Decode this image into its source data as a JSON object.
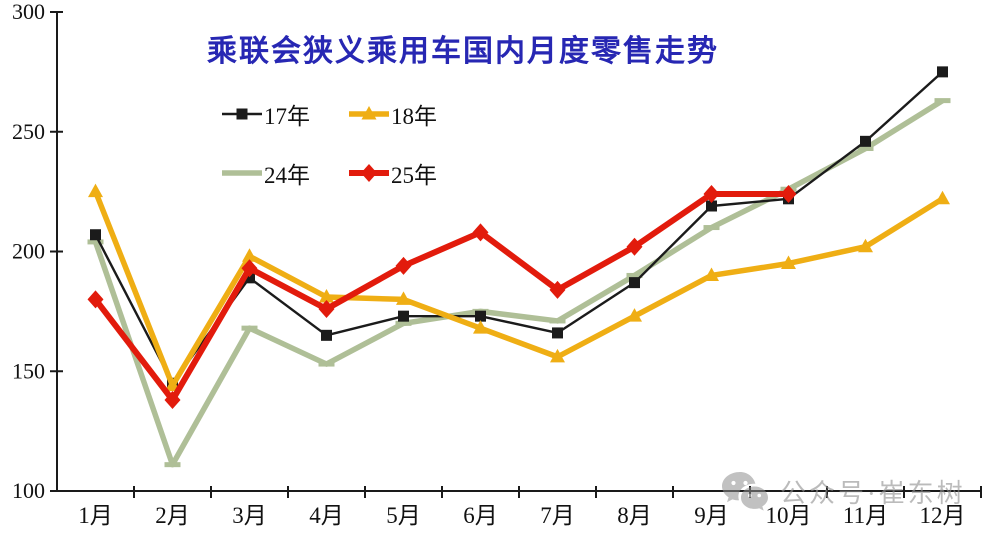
{
  "title": {
    "text": "乘联会狭义乘用车国内月度零售走势",
    "color": "#2727b3"
  },
  "watermark": {
    "text": "公众号·崔东树",
    "icon": "wechat-icon",
    "color": "#919191"
  },
  "chart_data": {
    "type": "line",
    "title": "乘联会狭义乘用车国内月度零售走势",
    "categories": [
      "1月",
      "2月",
      "3月",
      "4月",
      "5月",
      "6月",
      "7月",
      "8月",
      "9月",
      "10月",
      "11月",
      "12月"
    ],
    "xlabel": "",
    "ylabel": "",
    "ylim": [
      100,
      300
    ],
    "yticks": [
      100,
      150,
      200,
      250,
      300
    ],
    "grid": false,
    "legend_position": "top-left-inside",
    "axis_color": "#1a1a1a",
    "series": [
      {
        "name": "17年",
        "color": "#1b1b1b",
        "marker": "square",
        "line_width": 2.4,
        "values": [
          207,
          145,
          189,
          165,
          173,
          173,
          166,
          187,
          219,
          222,
          246,
          275
        ]
      },
      {
        "name": "18年",
        "color": "#efae14",
        "marker": "triangle",
        "line_width": 5.5,
        "values": [
          225,
          144,
          198,
          181,
          180,
          168,
          156,
          173,
          190,
          195,
          202,
          222
        ]
      },
      {
        "name": "24年",
        "color": "#afbf97",
        "marker": "dash",
        "line_width": 5.5,
        "values": [
          204,
          111,
          168,
          153,
          170,
          175,
          171,
          190,
          210,
          226,
          243,
          263
        ]
      },
      {
        "name": "25年",
        "color": "#e21b0c",
        "marker": "diamond",
        "line_width": 6,
        "values": [
          180,
          138,
          193,
          176,
          194,
          208,
          184,
          202,
          224,
          224,
          null,
          null
        ]
      }
    ]
  }
}
